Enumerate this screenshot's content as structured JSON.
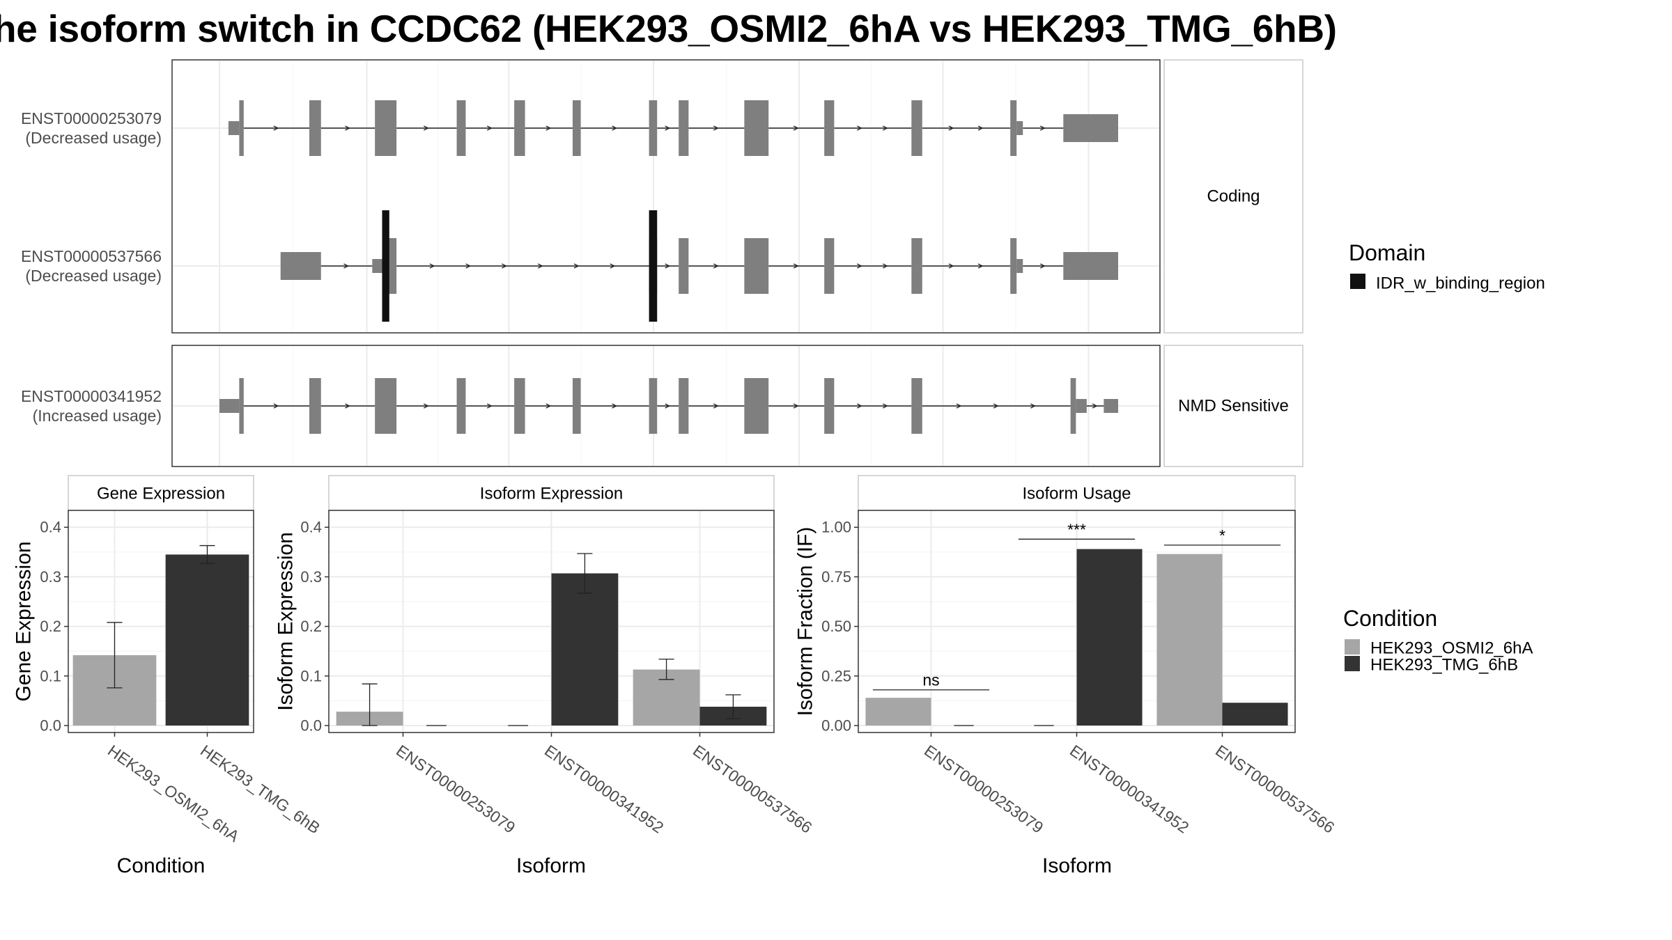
{
  "title": "he isoform switch in CCDC62 (HEK293_OSMI2_6hA vs HEK293_TMG_6hB)",
  "colors": {
    "exon": "#7f7f7f",
    "domain": "#111111",
    "cond_a": "#a6a6a6",
    "cond_b": "#333333",
    "grid_major": "#ebebeb",
    "grid_minor": "#f5f5f5",
    "panel_border": "#333333"
  },
  "structure": {
    "groups": [
      {
        "label": "Coding",
        "transcripts": [
          {
            "id": "ENST00000253079",
            "usage": "(Decreased usage)",
            "exons": [
              [
                0.01,
                0.022,
                "s"
              ],
              [
                0.022,
                0.027,
                "t"
              ],
              [
                0.1,
                0.113,
                "t"
              ],
              [
                0.173,
                0.197,
                "t"
              ],
              [
                0.264,
                0.274,
                "t"
              ],
              [
                0.328,
                0.34,
                "t"
              ],
              [
                0.393,
                0.402,
                "t"
              ],
              [
                0.478,
                0.487,
                "t"
              ],
              [
                0.511,
                0.522,
                "t"
              ],
              [
                0.584,
                0.611,
                "t"
              ],
              [
                0.673,
                0.684,
                "t"
              ],
              [
                0.77,
                0.782,
                "t"
              ],
              [
                0.88,
                0.887,
                "t"
              ],
              [
                0.887,
                0.894,
                "s"
              ],
              [
                0.939,
                1.0,
                "m"
              ]
            ],
            "domains": []
          },
          {
            "id": "ENST00000537566",
            "usage": "(Decreased usage)",
            "exons": [
              [
                0.068,
                0.113,
                "m"
              ],
              [
                0.17,
                0.181,
                "s"
              ],
              [
                0.181,
                0.197,
                "t"
              ],
              [
                0.478,
                0.487,
                "t"
              ],
              [
                0.511,
                0.522,
                "t"
              ],
              [
                0.584,
                0.611,
                "t"
              ],
              [
                0.673,
                0.684,
                "t"
              ],
              [
                0.77,
                0.782,
                "t"
              ],
              [
                0.88,
                0.887,
                "t"
              ],
              [
                0.887,
                0.894,
                "s"
              ],
              [
                0.939,
                1.0,
                "m"
              ]
            ],
            "domains": [
              [
                0.181,
                0.189
              ],
              [
                0.478,
                0.487
              ]
            ]
          }
        ]
      },
      {
        "label": "NMD Sensitive",
        "transcripts": [
          {
            "id": "ENST00000341952",
            "usage": "(Increased usage)",
            "exons": [
              [
                0.0,
                0.022,
                "s"
              ],
              [
                0.022,
                0.027,
                "t"
              ],
              [
                0.1,
                0.113,
                "t"
              ],
              [
                0.173,
                0.197,
                "t"
              ],
              [
                0.264,
                0.274,
                "t"
              ],
              [
                0.328,
                0.34,
                "t"
              ],
              [
                0.393,
                0.402,
                "t"
              ],
              [
                0.478,
                0.487,
                "t"
              ],
              [
                0.511,
                0.522,
                "t"
              ],
              [
                0.584,
                0.611,
                "t"
              ],
              [
                0.673,
                0.684,
                "t"
              ],
              [
                0.77,
                0.782,
                "t"
              ],
              [
                0.947,
                0.953,
                "t"
              ],
              [
                0.953,
                0.965,
                "s"
              ],
              [
                0.984,
                1.0,
                "s"
              ]
            ],
            "domains": []
          }
        ]
      }
    ]
  },
  "legends": {
    "domain": {
      "title": "Domain",
      "items": [
        {
          "label": "IDR_w_binding_region"
        }
      ]
    },
    "condition": {
      "title": "Condition",
      "items": [
        {
          "label": "HEK293_OSMI2_6hA"
        },
        {
          "label": "HEK293_TMG_6hB"
        }
      ]
    }
  },
  "chart_data": [
    {
      "type": "bar",
      "title": "Gene Expression",
      "xlabel": "Condition",
      "ylabel": "Gene Expression",
      "ylim": [
        0,
        0.42
      ],
      "yticks": [
        "0.0",
        "0.1",
        "0.2",
        "0.3",
        "0.4"
      ],
      "categories": [
        "HEK293_OSMI2_6hA",
        "HEK293_TMG_6hB"
      ],
      "bars": [
        {
          "category": "HEK293_OSMI2_6hA",
          "condition": 0,
          "value": 0.142,
          "err_low": 0.076,
          "err_high": 0.208
        },
        {
          "category": "HEK293_TMG_6hB",
          "condition": 1,
          "value": 0.345,
          "err_low": 0.327,
          "err_high": 0.363
        }
      ]
    },
    {
      "type": "bar",
      "title": "Isoform Expression",
      "xlabel": "Isoform",
      "ylabel": "Isoform Expression",
      "ylim": [
        0,
        0.42
      ],
      "yticks": [
        "0.0",
        "0.1",
        "0.2",
        "0.3",
        "0.4"
      ],
      "categories": [
        "ENST00000253079",
        "ENST00000341952",
        "ENST00000537566"
      ],
      "series": [
        {
          "name": "HEK293_OSMI2_6hA",
          "values": [
            0.028,
            0.0,
            0.113
          ],
          "err_low": [
            0.0,
            0.0,
            0.093
          ],
          "err_high": [
            0.084,
            0.0,
            0.134
          ]
        },
        {
          "name": "HEK293_TMG_6hB",
          "values": [
            0.0,
            0.307,
            0.038
          ],
          "err_low": [
            0.0,
            0.267,
            0.014
          ],
          "err_high": [
            0.0,
            0.347,
            0.062
          ]
        }
      ]
    },
    {
      "type": "bar",
      "title": "Isoform Usage",
      "xlabel": "Isoform",
      "ylabel": "Isoform Fraction (IF)",
      "ylim": [
        0,
        1.05
      ],
      "yticks": [
        "0.00",
        "0.25",
        "0.50",
        "0.75",
        "1.00"
      ],
      "categories": [
        "ENST00000253079",
        "ENST00000341952",
        "ENST00000537566"
      ],
      "series": [
        {
          "name": "HEK293_OSMI2_6hA",
          "values": [
            0.14,
            0.0,
            0.865
          ]
        },
        {
          "name": "HEK293_TMG_6hB",
          "values": [
            0.0,
            0.89,
            0.115
          ]
        }
      ],
      "significance": [
        {
          "category": "ENST00000253079",
          "label": "ns",
          "y": 0.18
        },
        {
          "category": "ENST00000341952",
          "label": "***",
          "y": 0.94
        },
        {
          "category": "ENST00000537566",
          "label": "*",
          "y": 0.91
        }
      ]
    }
  ]
}
